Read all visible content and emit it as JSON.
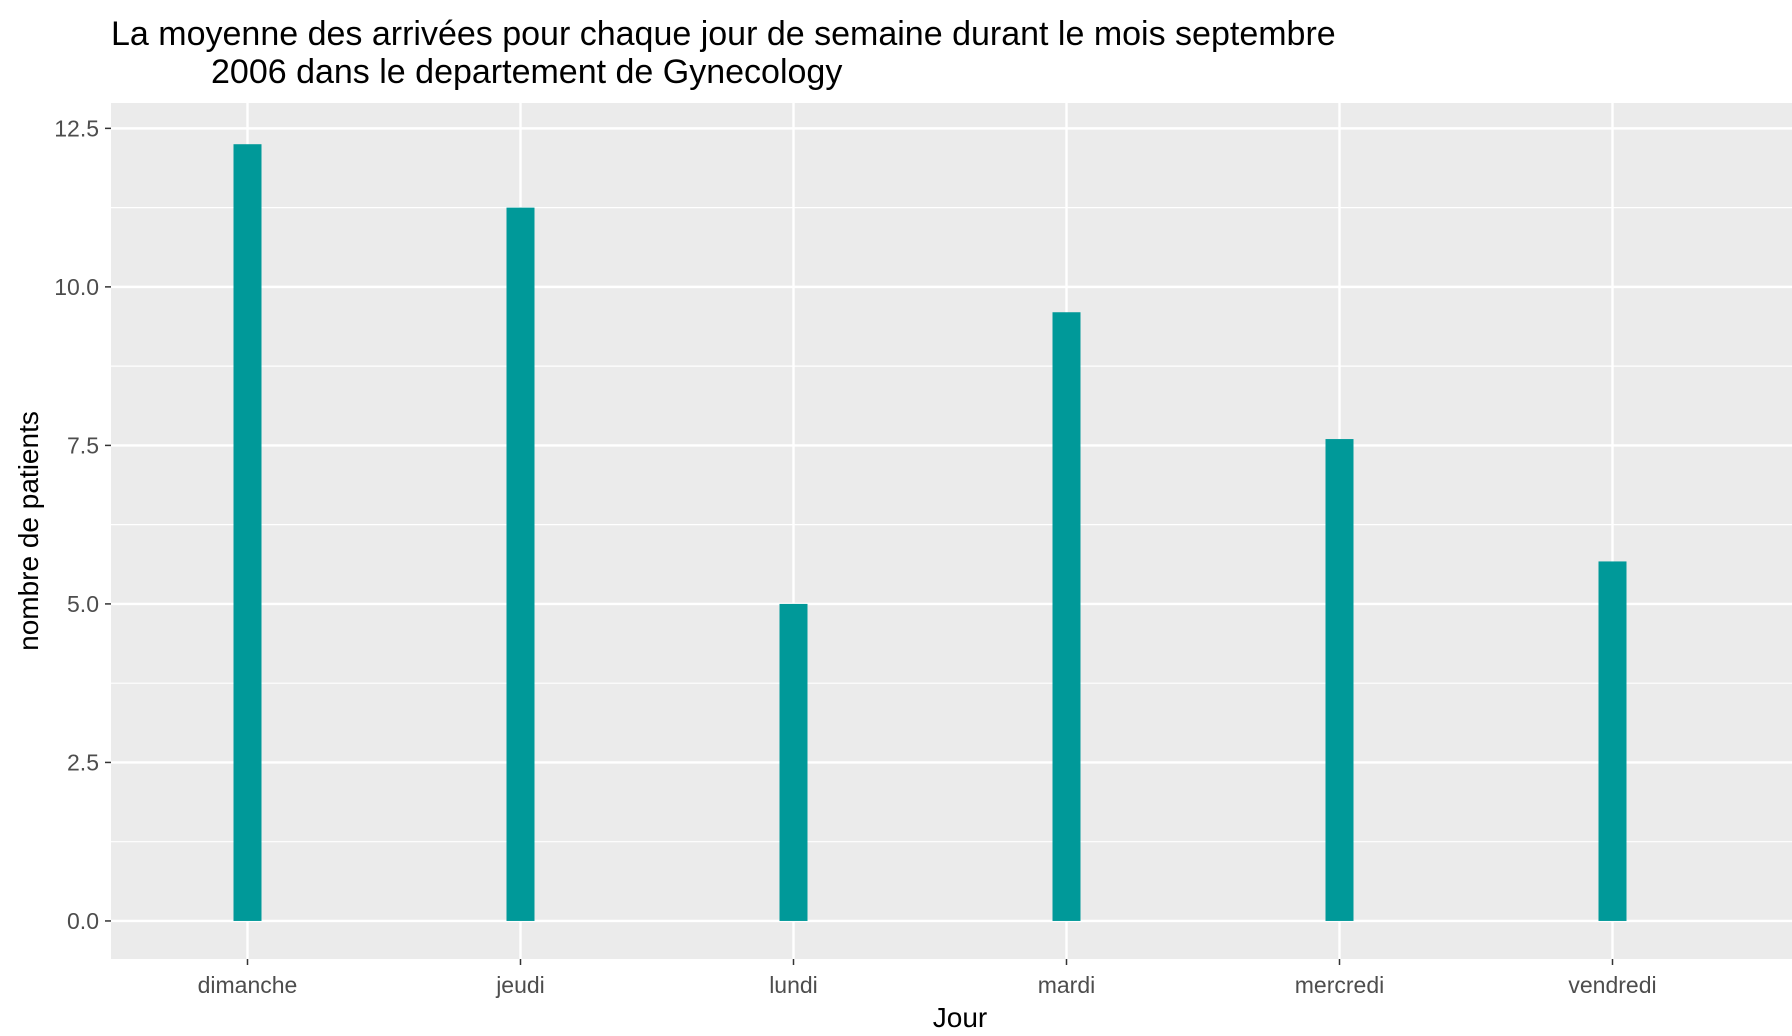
{
  "chart_data": {
    "type": "bar",
    "title_lines": [
      "La moyenne des arrivées pour chaque jour de semaine durant le mois septembre",
      "2006 dans le departement de Gynecology"
    ],
    "xlabel": "Jour",
    "ylabel": "nombre de patients",
    "categories": [
      "dimanche",
      "jeudi",
      "lundi",
      "mardi",
      "mercredi",
      "vendredi"
    ],
    "values": [
      12.25,
      11.25,
      5.0,
      9.6,
      7.6,
      5.67
    ],
    "ylim": [
      -0.6,
      12.9
    ],
    "yticks": [
      0,
      2.5,
      5,
      7.5,
      10,
      12.5
    ],
    "ytick_labels": [
      "0.0",
      "2.5",
      "5.0",
      "7.5",
      "10.0",
      "12.5"
    ],
    "grid": true,
    "colors": {
      "bar": "#009999",
      "panel": "#ebebeb",
      "grid": "#ffffff"
    }
  }
}
